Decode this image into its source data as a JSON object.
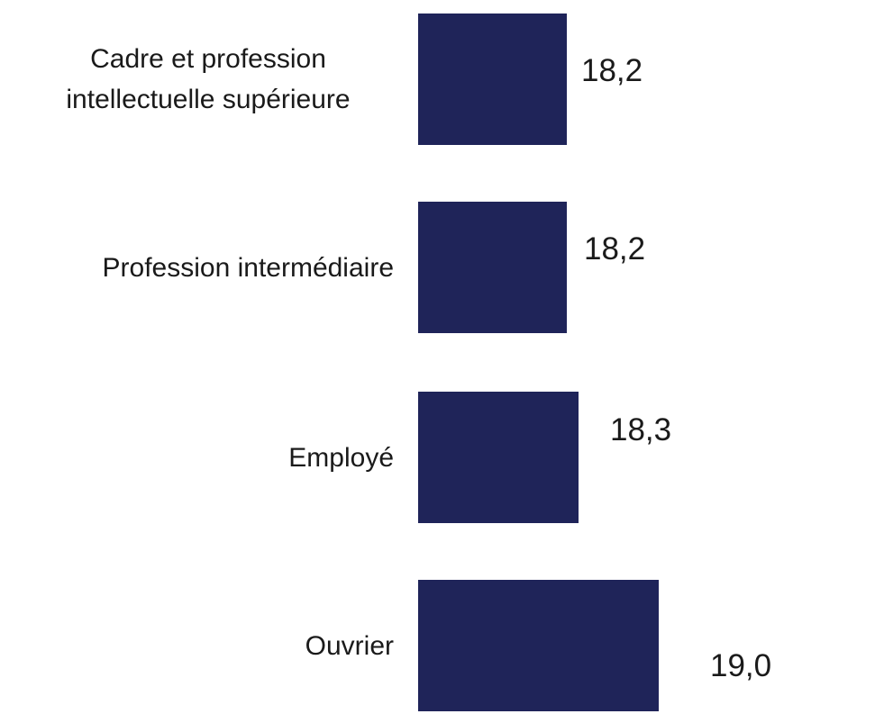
{
  "page": {
    "background_color": "#FFFFFF"
  },
  "chart_data": {
    "type": "bar",
    "orientation": "horizontal",
    "categories": [
      "Cadre et profession intellectuelle supérieure",
      "Profession intermédiaire",
      "Employé",
      "Ouvrier"
    ],
    "values": [
      18.2,
      18.2,
      18.3,
      19.0
    ],
    "value_labels": [
      "18,2",
      "18,2",
      "18,3",
      "19,0"
    ],
    "bar_color": "#1F2459",
    "text_color": "#1A1A1A",
    "xlim": [
      16.9,
      19.6
    ],
    "grid": false,
    "legend": false,
    "axes_visible": false,
    "value_label_position": "outside-end"
  }
}
